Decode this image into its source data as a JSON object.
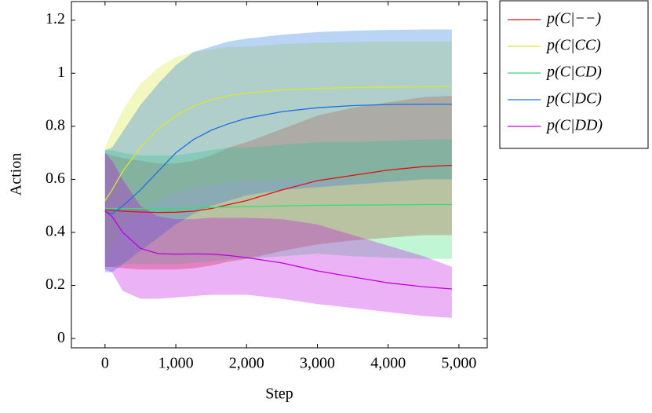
{
  "chart_data": {
    "type": "line",
    "xlabel": "Step",
    "ylabel": "Action",
    "x": [
      0,
      100,
      250,
      500,
      750,
      1000,
      1250,
      1500,
      1750,
      2000,
      2500,
      3000,
      3500,
      4000,
      4500,
      4900
    ],
    "xlim": [
      -475,
      5400
    ],
    "xticks": [
      0,
      {
        "value": 1000,
        "label": "1,000"
      },
      {
        "value": 2000,
        "label": "2,000"
      },
      {
        "value": 3000,
        "label": "3,000"
      },
      {
        "value": 4000,
        "label": "4,000"
      },
      {
        "value": 5000,
        "label": "5,000"
      }
    ],
    "ylim": [
      -0.035,
      1.27
    ],
    "yticks": [
      0,
      0.2,
      0.4,
      0.6,
      0.8,
      1,
      1.2
    ],
    "band_opacity": 0.3,
    "legend": "outside-top-right",
    "series": [
      {
        "name": "p(C|−−)",
        "color": "#e01010",
        "values": [
          0.485,
          0.483,
          0.48,
          0.477,
          0.475,
          0.476,
          0.48,
          0.49,
          0.505,
          0.52,
          0.56,
          0.595,
          0.615,
          0.635,
          0.648,
          0.653
        ],
        "upper": [
          0.7,
          0.69,
          0.68,
          0.67,
          0.66,
          0.66,
          0.67,
          0.69,
          0.72,
          0.74,
          0.79,
          0.84,
          0.87,
          0.89,
          0.91,
          0.915
        ],
        "lower": [
          0.27,
          0.27,
          0.265,
          0.26,
          0.26,
          0.26,
          0.265,
          0.275,
          0.29,
          0.3,
          0.33,
          0.355,
          0.37,
          0.38,
          0.39,
          0.39
        ]
      },
      {
        "name": "p(C|CC)",
        "color": "#d8e830",
        "values": [
          0.52,
          0.56,
          0.63,
          0.72,
          0.79,
          0.84,
          0.875,
          0.9,
          0.915,
          0.925,
          0.937,
          0.943,
          0.946,
          0.948,
          0.949,
          0.95
        ],
        "upper": [
          0.72,
          0.78,
          0.86,
          0.96,
          1.02,
          1.06,
          1.08,
          1.09,
          1.1,
          1.1,
          1.11,
          1.115,
          1.118,
          1.12,
          1.12,
          1.12
        ],
        "lower": [
          0.32,
          0.35,
          0.42,
          0.48,
          0.52,
          0.55,
          0.57,
          0.58,
          0.59,
          0.595,
          0.6,
          0.6,
          0.6,
          0.6,
          0.6,
          0.6
        ]
      },
      {
        "name": "p(C|CD)",
        "color": "#30e070",
        "values": [
          0.49,
          0.49,
          0.49,
          0.49,
          0.49,
          0.49,
          0.492,
          0.494,
          0.496,
          0.497,
          0.5,
          0.502,
          0.503,
          0.504,
          0.505,
          0.505
        ],
        "upper": [
          0.71,
          0.71,
          0.7,
          0.69,
          0.69,
          0.69,
          0.7,
          0.71,
          0.72,
          0.72,
          0.73,
          0.74,
          0.74,
          0.745,
          0.75,
          0.75
        ],
        "lower": [
          0.27,
          0.27,
          0.28,
          0.28,
          0.28,
          0.28,
          0.285,
          0.29,
          0.3,
          0.3,
          0.31,
          0.32,
          0.31,
          0.305,
          0.3,
          0.3
        ]
      },
      {
        "name": "p(C|DC)",
        "color": "#1a70e0",
        "values": [
          0.48,
          0.47,
          0.5,
          0.56,
          0.63,
          0.7,
          0.75,
          0.785,
          0.81,
          0.83,
          0.855,
          0.87,
          0.878,
          0.882,
          0.883,
          0.883
        ],
        "upper": [
          0.71,
          0.72,
          0.78,
          0.88,
          0.96,
          1.03,
          1.08,
          1.1,
          1.12,
          1.13,
          1.145,
          1.155,
          1.16,
          1.163,
          1.165,
          1.165
        ],
        "lower": [
          0.25,
          0.25,
          0.28,
          0.33,
          0.38,
          0.43,
          0.47,
          0.5,
          0.52,
          0.54,
          0.56,
          0.57,
          0.58,
          0.59,
          0.6,
          0.6
        ]
      },
      {
        "name": "p(C|DD)",
        "color": "#c000e0",
        "values": [
          0.48,
          0.46,
          0.4,
          0.34,
          0.32,
          0.318,
          0.319,
          0.318,
          0.313,
          0.305,
          0.285,
          0.255,
          0.232,
          0.21,
          0.195,
          0.187
        ],
        "upper": [
          0.7,
          0.67,
          0.6,
          0.5,
          0.46,
          0.45,
          0.45,
          0.455,
          0.455,
          0.455,
          0.45,
          0.43,
          0.39,
          0.35,
          0.31,
          0.27
        ],
        "lower": [
          0.26,
          0.25,
          0.18,
          0.15,
          0.15,
          0.155,
          0.16,
          0.165,
          0.165,
          0.165,
          0.15,
          0.13,
          0.115,
          0.1,
          0.085,
          0.078
        ]
      }
    ]
  }
}
